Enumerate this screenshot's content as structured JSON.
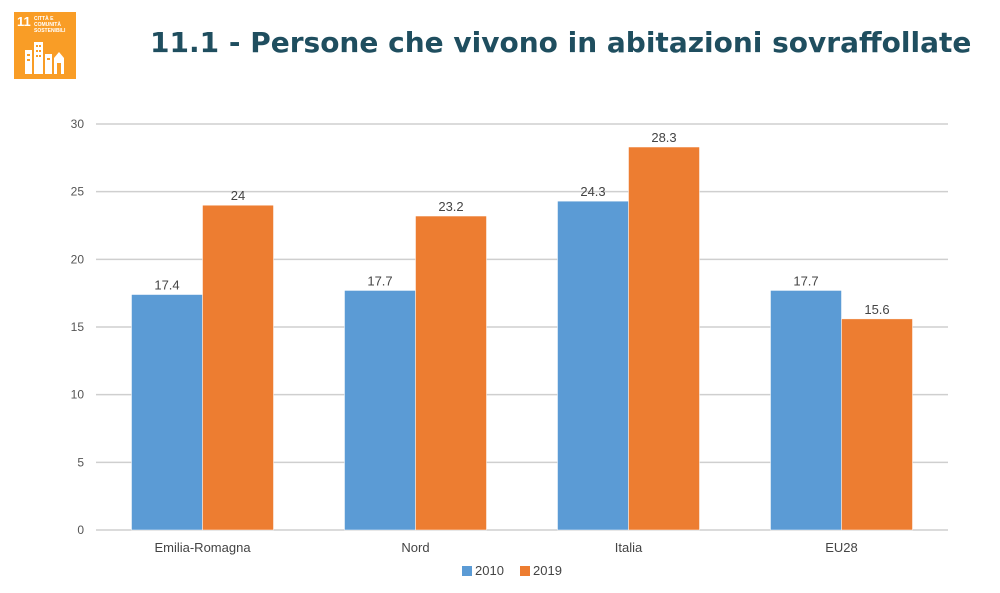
{
  "header": {
    "title": "11.1 - Persone che vivono in abitazioni sovraffollate"
  },
  "sdg_badge": {
    "number": "11",
    "text": "CITTÀ E COMUNITÀ SOSTENIBILI",
    "icon": "city-buildings-icon",
    "color": "#f99d26"
  },
  "colors": {
    "title": "#1f4e5f",
    "series_2010": "#5b9bd5",
    "series_2019": "#ed7d31",
    "grid": "#cfcfcf"
  },
  "chart_data": {
    "type": "bar",
    "categories": [
      "Emilia-Romagna",
      "Nord",
      "Italia",
      "EU28"
    ],
    "series": [
      {
        "name": "2010",
        "values": [
          17.4,
          17.7,
          24.3,
          17.7
        ]
      },
      {
        "name": "2019",
        "values": [
          24,
          23.2,
          28.3,
          15.6
        ]
      }
    ],
    "value_labels": [
      [
        "17.4",
        "17.7",
        "24.3",
        "17.7"
      ],
      [
        "24",
        "23.2",
        "28.3",
        "15.6"
      ]
    ],
    "yticks": [
      "0",
      "5",
      "10",
      "15",
      "20",
      "25",
      "30"
    ],
    "ylim": [
      0,
      30
    ],
    "grid": true,
    "legend_position": "bottom",
    "title": "",
    "xlabel": "",
    "ylabel": ""
  }
}
